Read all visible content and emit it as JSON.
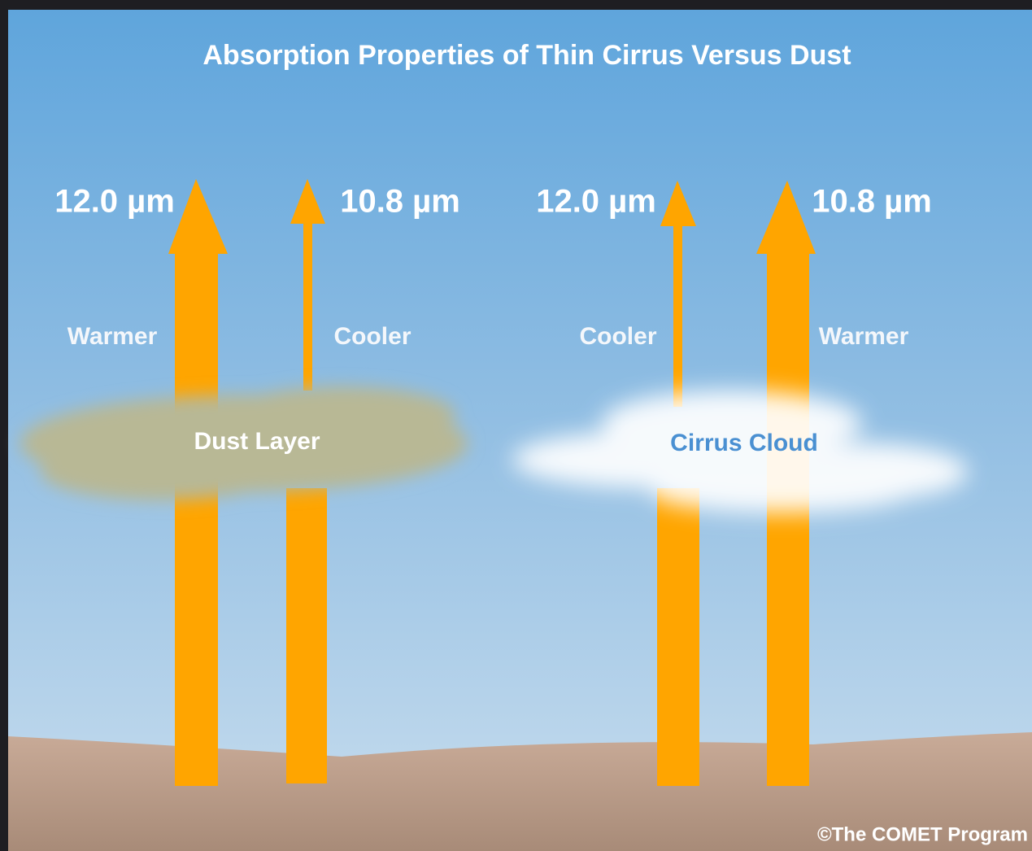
{
  "title": "Absorption Properties of Thin Cirrus Versus Dust",
  "arrows": [
    {
      "wavelength": "12.0 µm",
      "temperature": "Warmer"
    },
    {
      "wavelength": "10.8 µm",
      "temperature": "Cooler"
    },
    {
      "wavelength": "12.0 µm",
      "temperature": "Cooler"
    },
    {
      "wavelength": "10.8 µm",
      "temperature": "Warmer"
    }
  ],
  "layers": [
    "Dust Layer",
    "Cirrus Cloud"
  ],
  "credit": "©The COMET Program"
}
